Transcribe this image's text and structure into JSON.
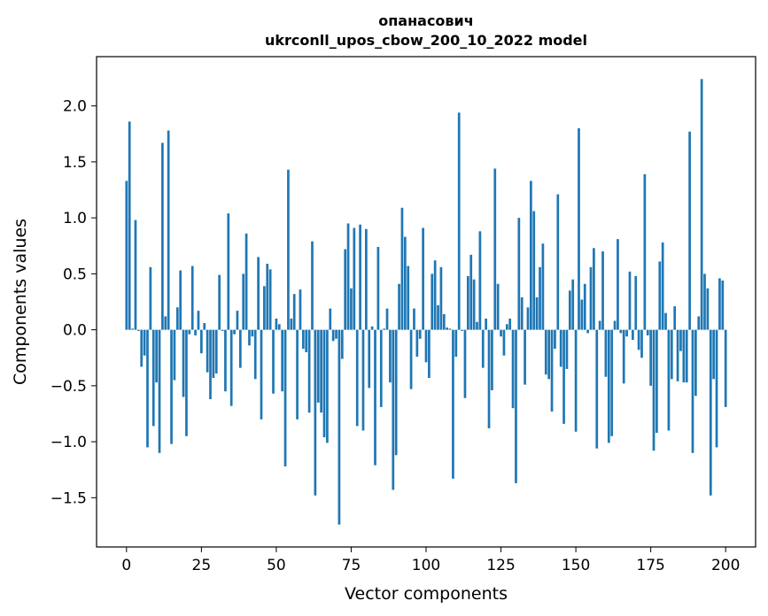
{
  "chart_data": {
    "type": "bar",
    "title_line1": "опанасович",
    "title_line2": "ukrconll_upos_cbow_200_10_2022 model",
    "xlabel": "Vector components",
    "ylabel": "Components values",
    "xlim": [
      -10,
      210
    ],
    "ylim": [
      -1.94,
      2.44
    ],
    "xticks": [
      0,
      25,
      50,
      75,
      100,
      125,
      150,
      175,
      200
    ],
    "xtick_labels": [
      "0",
      "25",
      "50",
      "75",
      "100",
      "125",
      "150",
      "175",
      "200"
    ],
    "yticks": [
      -1.5,
      -1.0,
      -0.5,
      0.0,
      0.5,
      1.0,
      1.5,
      2.0
    ],
    "ytick_labels": [
      "−1.5",
      "−1.0",
      "−0.5",
      "0.0",
      "0.5",
      "1.0",
      "1.5",
      "2.0"
    ],
    "bar_color": "#1f77b4",
    "grid": false,
    "values": [
      1.33,
      1.86,
      0.01,
      0.98,
      -0.01,
      -0.33,
      -0.23,
      -1.05,
      0.56,
      -0.86,
      -0.47,
      -1.1,
      1.67,
      0.12,
      1.78,
      -1.02,
      -0.45,
      0.2,
      0.53,
      -0.6,
      -0.95,
      -0.04,
      0.57,
      -0.05,
      0.17,
      -0.21,
      0.06,
      -0.38,
      -0.62,
      -0.43,
      -0.39,
      0.49,
      -0.01,
      -0.55,
      1.04,
      -0.68,
      -0.04,
      0.17,
      -0.34,
      0.5,
      0.86,
      -0.14,
      -0.06,
      -0.44,
      0.65,
      -0.8,
      0.39,
      0.59,
      0.54,
      -0.57,
      0.1,
      0.05,
      -0.55,
      -1.22,
      1.43,
      0.1,
      0.32,
      -0.8,
      0.36,
      -0.17,
      -0.2,
      -0.74,
      0.79,
      -1.48,
      -0.65,
      -0.74,
      -0.96,
      -1.01,
      0.19,
      -0.1,
      -0.08,
      -1.74,
      -0.26,
      0.72,
      0.95,
      0.37,
      0.91,
      -0.86,
      0.94,
      -0.9,
      0.9,
      -0.52,
      0.03,
      -1.21,
      0.74,
      -0.69,
      0.01,
      0.19,
      -0.47,
      -1.43,
      -1.12,
      0.41,
      1.09,
      0.83,
      0.57,
      -0.53,
      0.19,
      -0.24,
      -0.08,
      0.91,
      -0.29,
      -0.43,
      0.5,
      0.62,
      0.22,
      0.56,
      0.14,
      0.02,
      0.01,
      -1.33,
      -0.24,
      1.94,
      -0.01,
      -0.61,
      0.48,
      0.67,
      0.45,
      0.07,
      0.88,
      -0.34,
      0.1,
      -0.88,
      -0.54,
      1.44,
      0.41,
      -0.06,
      -0.23,
      0.05,
      0.1,
      -0.7,
      -1.37,
      1.0,
      0.29,
      -0.49,
      0.2,
      1.33,
      1.06,
      0.29,
      0.56,
      0.77,
      -0.4,
      -0.44,
      -0.73,
      -0.17,
      1.21,
      -0.33,
      -0.84,
      -0.35,
      0.35,
      0.45,
      -0.91,
      1.8,
      0.27,
      0.41,
      -0.03,
      0.56,
      0.73,
      -1.06,
      0.08,
      0.7,
      -0.42,
      -1.01,
      -0.95,
      0.08,
      0.81,
      -0.03,
      -0.48,
      -0.06,
      0.52,
      -0.09,
      0.48,
      -0.18,
      -0.25,
      1.39,
      -0.05,
      -0.5,
      -1.08,
      -0.92,
      0.61,
      0.78,
      0.15,
      -0.9,
      -0.44,
      0.21,
      -0.46,
      -0.19,
      -0.47,
      -0.47,
      1.77,
      -1.1,
      -0.59,
      0.12,
      2.24,
      0.5,
      0.37,
      -1.48,
      -0.44,
      -1.05,
      0.46,
      0.44,
      -0.69
    ]
  }
}
